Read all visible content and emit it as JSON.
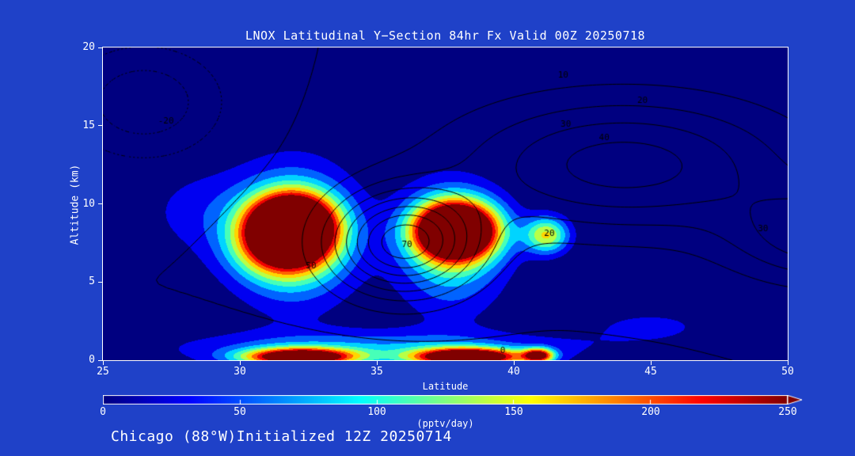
{
  "page": {
    "background": "#1F41C8",
    "text_color": "#FFFFFF"
  },
  "footer": {
    "note": "Chicago (88°W)Initialized 12Z 20250714"
  },
  "chart_data": {
    "type": "heatmap",
    "title": "LNOX Latitudinal Y−Section 84hr  Fx Valid 00Z 20250718",
    "xlabel": "Latitude",
    "ylabel": "Altitude (km)",
    "xlim": [
      25,
      50
    ],
    "ylim": [
      0,
      20
    ],
    "x_ticks": [
      25,
      30,
      35,
      40,
      45,
      50
    ],
    "y_ticks": [
      0,
      5,
      10,
      15,
      20
    ],
    "plot_background": "#000080",
    "contour_line_color": "#000000",
    "fill": {
      "quantity": "LNOX",
      "units": "pptv/day",
      "vmin": 0,
      "vmax": 250,
      "band_step": 25,
      "colormap": "jet",
      "gaussians": [
        {
          "lat": 31.9,
          "alt": 8.7,
          "amp": 360,
          "slat": 1.5,
          "salt": 1.9
        },
        {
          "lat": 31.6,
          "alt": 7.2,
          "amp": 170,
          "slat": 1.7,
          "salt": 2.0
        },
        {
          "lat": 32.0,
          "alt": 8.0,
          "amp": 105,
          "slat": 2.2,
          "salt": 4.4
        },
        {
          "lat": 37.9,
          "alt": 8.3,
          "amp": 400,
          "slat": 1.45,
          "salt": 1.75
        },
        {
          "lat": 37.7,
          "alt": 7.2,
          "amp": 105,
          "slat": 1.9,
          "salt": 3.9
        },
        {
          "lat": 41.2,
          "alt": 8.0,
          "amp": 150,
          "slat": 0.8,
          "salt": 1.15
        },
        {
          "lat": 32.2,
          "alt": 0.2,
          "amp": 300,
          "slat": 2.0,
          "salt": 0.55
        },
        {
          "lat": 38.3,
          "alt": 0.2,
          "amp": 330,
          "slat": 1.9,
          "salt": 0.55
        },
        {
          "lat": 40.9,
          "alt": 0.3,
          "amp": 220,
          "slat": 0.55,
          "salt": 0.45
        },
        {
          "lat": 35.0,
          "alt": 0.8,
          "amp": 70,
          "slat": 7.0,
          "salt": 1.1
        },
        {
          "lat": 28.6,
          "alt": 9.5,
          "amp": 34,
          "slat": 2.2,
          "salt": 2.8
        },
        {
          "lat": 45.0,
          "alt": 2.2,
          "amp": 30,
          "slat": 2.6,
          "salt": 1.2
        }
      ]
    },
    "overlay": {
      "levels": [
        -20,
        -10,
        0,
        10,
        20,
        30,
        40,
        50,
        60,
        70
      ],
      "negative_style": "dotted",
      "gaussians": [
        {
          "lat": 44.0,
          "alt": 12.5,
          "amp": 45,
          "slat": 6.0,
          "salt": 4.2
        },
        {
          "lat": 36.0,
          "alt": 7.5,
          "amp": 76,
          "slat": 2.6,
          "salt": 3.2
        },
        {
          "lat": 26.5,
          "alt": 16.5,
          "amp": -28,
          "slat": 2.8,
          "salt": 3.5
        },
        {
          "lat": 33.0,
          "alt": -2.0,
          "amp": -18,
          "slat": 6.0,
          "salt": 2.2
        },
        {
          "lat": 51.5,
          "alt": 8.0,
          "amp": 38,
          "slat": 3.5,
          "salt": 3.0
        }
      ],
      "labels": [
        {
          "text": "-20",
          "lat": 27.3,
          "alt": 15.3
        },
        {
          "text": "10",
          "lat": 41.8,
          "alt": 18.2
        },
        {
          "text": "20",
          "lat": 44.7,
          "alt": 16.6
        },
        {
          "text": "30",
          "lat": 41.9,
          "alt": 15.1
        },
        {
          "text": "40",
          "lat": 43.3,
          "alt": 14.2
        },
        {
          "text": "30",
          "lat": 49.1,
          "alt": 8.4
        },
        {
          "text": "20",
          "lat": 41.3,
          "alt": 8.1
        },
        {
          "text": "70",
          "lat": 36.1,
          "alt": 7.4
        },
        {
          "text": "50",
          "lat": 32.6,
          "alt": 6.0
        },
        {
          "text": "0",
          "lat": 39.6,
          "alt": 0.6
        }
      ]
    },
    "colorbar": {
      "label": "(pptv/day)",
      "ticks": [
        0,
        50,
        100,
        150,
        200,
        250
      ],
      "min": 0,
      "max": 250,
      "colormap": "jet"
    }
  }
}
